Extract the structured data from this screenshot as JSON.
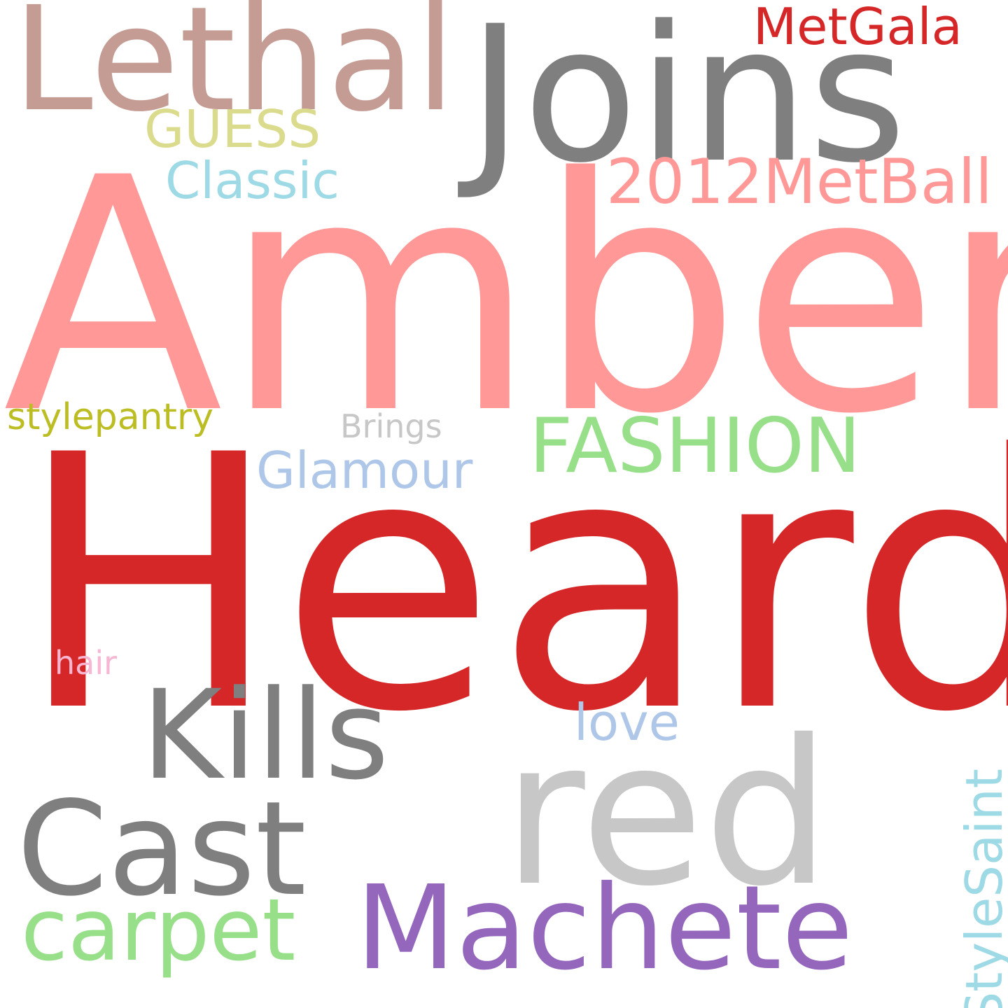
{
  "cloud": {
    "background": "#ffffff",
    "words": {
      "heard": {
        "text": "Heard",
        "color": "#d62728"
      },
      "amber": {
        "text": "Amber",
        "color": "#ff9896"
      },
      "joins": {
        "text": "Joins",
        "color": "#7f7f7f"
      },
      "lethal": {
        "text": "Lethal",
        "color": "#c49c94"
      },
      "red": {
        "text": "red",
        "color": "#c7c7c7"
      },
      "machete": {
        "text": "Machete",
        "color": "#9467bd"
      },
      "cast": {
        "text": "Cast",
        "color": "#7f7f7f"
      },
      "kills": {
        "text": "Kills",
        "color": "#7f7f7f"
      },
      "carpet": {
        "text": "carpet",
        "color": "#98df8a"
      },
      "fashion": {
        "text": "FASHION",
        "color": "#98df8a"
      },
      "metball2012": {
        "text": "2012MetBall",
        "color": "#ff9896"
      },
      "metgala": {
        "text": "MetGala",
        "color": "#d62728"
      },
      "guess": {
        "text": "GUESS",
        "color": "#dbdb8d"
      },
      "classic": {
        "text": "Classic",
        "color": "#9edae5"
      },
      "glamour": {
        "text": "Glamour",
        "color": "#aec7e8"
      },
      "love": {
        "text": "love",
        "color": "#aec7e8"
      },
      "stylesaint": {
        "text": "StyleSaint",
        "color": "#9edae5"
      },
      "stylepantry": {
        "text": "stylepantry",
        "color": "#bcbd22"
      },
      "brings": {
        "text": "Brings",
        "color": "#c7c7c7"
      },
      "hair": {
        "text": "hair",
        "color": "#f7b6d2"
      }
    }
  }
}
